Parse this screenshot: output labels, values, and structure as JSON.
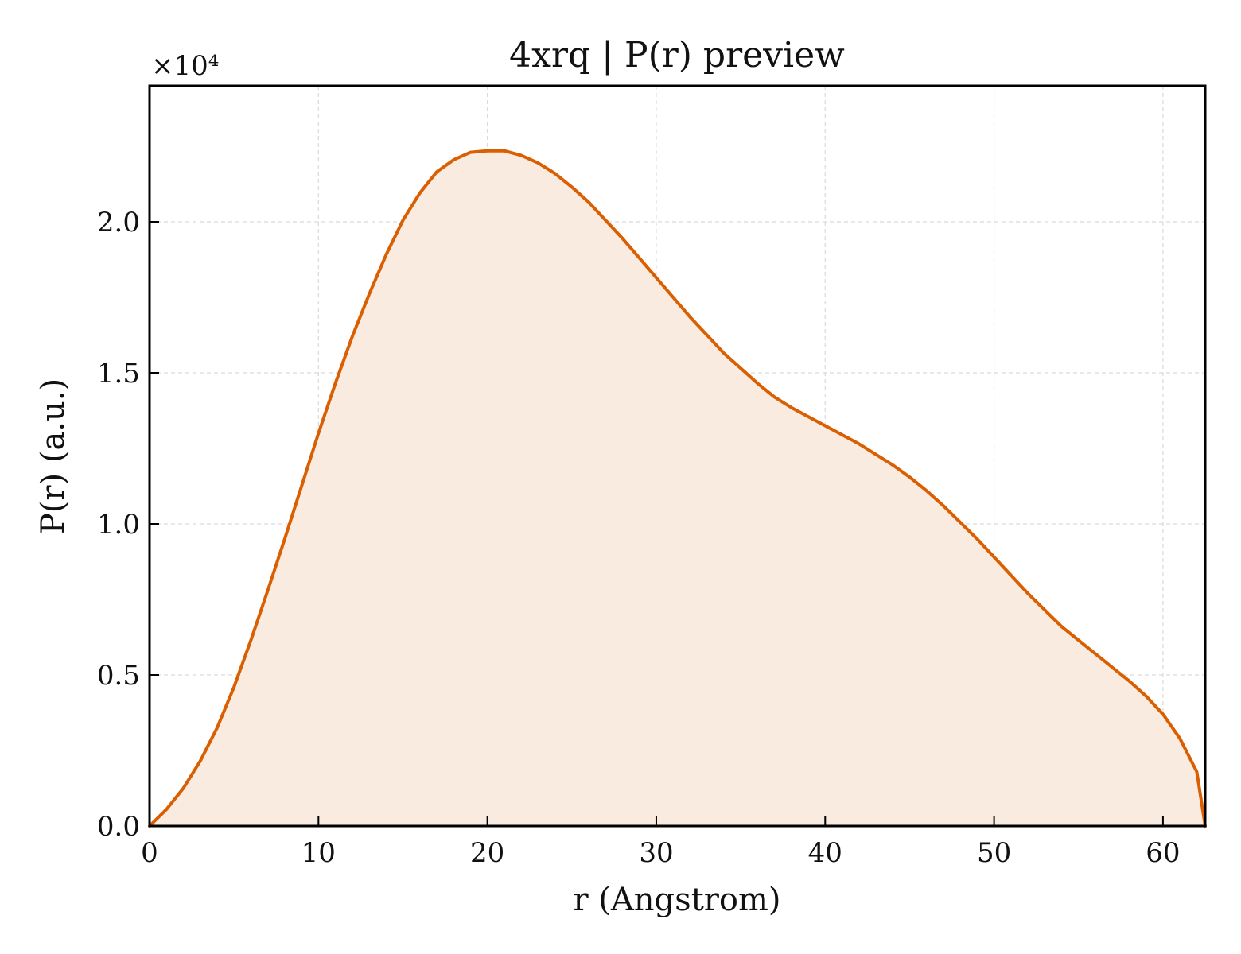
{
  "chart_data": {
    "type": "area",
    "title": "4xrq | P(r) preview",
    "xlabel": "r (Angstrom)",
    "ylabel": "P(r) (a.u.)",
    "y_offset_label": "×10⁴",
    "xlim": [
      0,
      62.5
    ],
    "ylim": [
      0,
      24500
    ],
    "xticks": [
      0,
      10,
      20,
      30,
      40,
      50,
      60
    ],
    "xtick_labels": [
      "0",
      "10",
      "20",
      "30",
      "40",
      "50",
      "60"
    ],
    "yticks": [
      0,
      5000,
      10000,
      15000,
      20000
    ],
    "ytick_labels": [
      "0.0",
      "0.5",
      "1.0",
      "1.5",
      "2.0"
    ],
    "grid": true,
    "line_color": "#d95f02",
    "fill_color": "#f9ebe0",
    "series": [
      {
        "x": [
          0,
          1,
          2,
          3,
          4,
          5,
          6,
          7,
          8,
          9,
          10,
          11,
          12,
          13,
          14,
          15,
          16,
          17,
          18,
          19,
          20,
          21,
          22,
          23,
          24,
          25,
          26,
          27,
          28,
          29,
          30,
          31,
          32,
          33,
          34,
          35,
          36,
          37,
          38,
          39,
          40,
          41,
          42,
          43,
          44,
          45,
          46,
          47,
          48,
          49,
          50,
          51,
          52,
          53,
          54,
          55,
          56,
          57,
          58,
          59,
          60,
          61,
          62,
          62.5
        ],
        "y": [
          0,
          550,
          1250,
          2150,
          3250,
          4600,
          6150,
          7800,
          9500,
          11250,
          13000,
          14650,
          16200,
          17600,
          18900,
          20050,
          20950,
          21650,
          22050,
          22300,
          22350,
          22350,
          22200,
          21950,
          21600,
          21150,
          20650,
          20050,
          19450,
          18800,
          18150,
          17500,
          16850,
          16250,
          15650,
          15150,
          14650,
          14200,
          13850,
          13550,
          13250,
          12950,
          12650,
          12300,
          11950,
          11550,
          11100,
          10600,
          10050,
          9500,
          8900,
          8300,
          7700,
          7150,
          6600,
          6150,
          5700,
          5250,
          4800,
          4300,
          3700,
          2900,
          1800,
          0
        ]
      }
    ]
  }
}
